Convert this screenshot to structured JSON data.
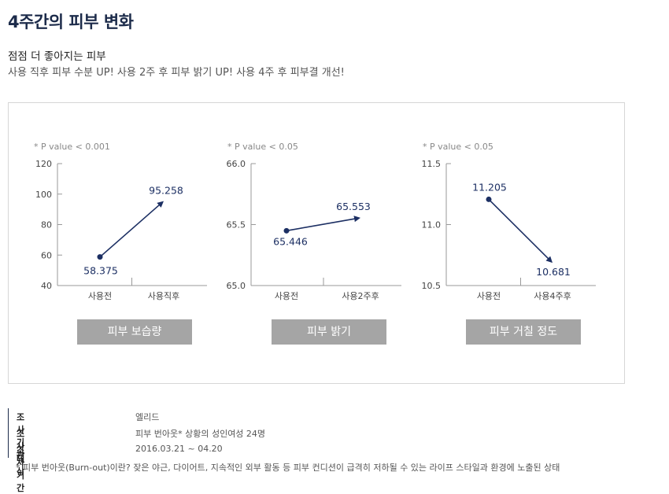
{
  "page": {
    "title": "4주간의 피부 변화",
    "subtitle": "점점 더 좋아지는 피부",
    "description": "사용 직후 피부 수분 UP! 사용 2주 후 피부 밝기 UP! 사용 4주 후 피부결 개선!"
  },
  "colors": {
    "line": "#1c2f63",
    "axis": "#999999",
    "caption_bg": "#a5a5a5",
    "panel_border": "#d6d6d6"
  },
  "chart_data": [
    {
      "type": "line",
      "caption": "피부 보습량",
      "pvalue": "* P value < 0.001",
      "categories": [
        "사용전",
        "사용직후"
      ],
      "values": [
        58.375,
        95.258
      ],
      "value_labels": [
        "58.375",
        "95.258"
      ],
      "yticks": [
        "120",
        "100",
        "80",
        "60",
        "40"
      ],
      "ylim": [
        40,
        120
      ]
    },
    {
      "type": "line",
      "caption": "피부 밝기",
      "pvalue": "* P value < 0.05",
      "categories": [
        "사용전",
        "사용2주후"
      ],
      "values": [
        65.446,
        65.553
      ],
      "value_labels": [
        "65.446",
        "65.553"
      ],
      "yticks": [
        "66.0",
        "65.5",
        "65.0"
      ],
      "ylim": [
        65.0,
        66.0
      ]
    },
    {
      "type": "line",
      "caption": "피부 거칠 정도",
      "pvalue": "* P value < 0.05",
      "categories": [
        "사용전",
        "사용4주후"
      ],
      "values": [
        11.205,
        10.681
      ],
      "value_labels": [
        "11.205",
        "10.681"
      ],
      "yticks": [
        "11.5",
        "11.0",
        "10.5"
      ],
      "ylim": [
        10.5,
        11.5
      ]
    }
  ],
  "survey": {
    "rows": [
      {
        "label": "조사 기관",
        "value": "엘리드"
      },
      {
        "label": "조사 대상",
        "value": "피부 번아웃* 상황의 성인여성 24명"
      },
      {
        "label": "조사기간",
        "value": "2016.03.21 ~ 04.20"
      }
    ],
    "footnote": "* 피부 번아웃(Burn-out)이란? 잦은 야근, 다이어트, 지속적인 외부 활동 등 피부 컨디션이 급격히 저하될 수 있는 라이프 스타일과 환경에 노출된 상태"
  }
}
